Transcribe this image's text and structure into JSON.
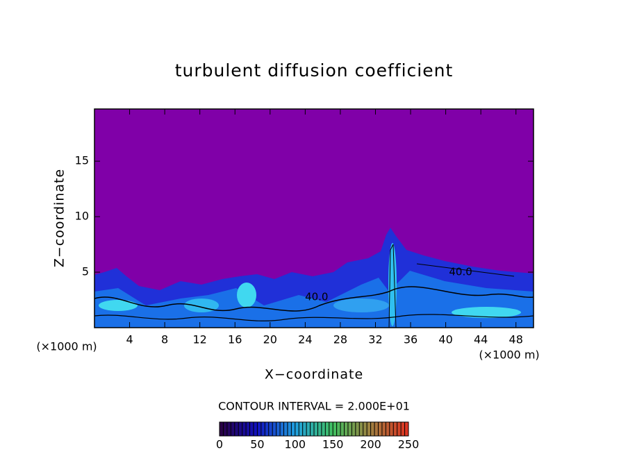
{
  "chart_data": {
    "type": "contour",
    "title": "turbulent diffusion coefficient",
    "x_label": "X−coordinate",
    "y_label": "Z−coordinate",
    "x_unit_label": "(×1000 m)",
    "y_unit_label": "(×1000 m)",
    "xlim": [
      0,
      50
    ],
    "xticks": [
      4,
      8,
      12,
      16,
      20,
      24,
      28,
      32,
      36,
      40,
      44,
      48
    ],
    "ylim": [
      0,
      19.7
    ],
    "yticks": [
      5,
      10,
      15
    ],
    "contour_interval_label": "CONTOUR INTERVAL = 2.000E+01",
    "colorbar": {
      "lim": [
        0,
        250
      ],
      "ticks": [
        0,
        50,
        100,
        150,
        200,
        250
      ]
    },
    "contour_labels": [
      {
        "value": 40,
        "label": "40.0",
        "x": 25.3,
        "z": 2.75
      },
      {
        "value": 40,
        "label": "40.0",
        "x": 41.7,
        "z": 5.0
      }
    ]
  }
}
